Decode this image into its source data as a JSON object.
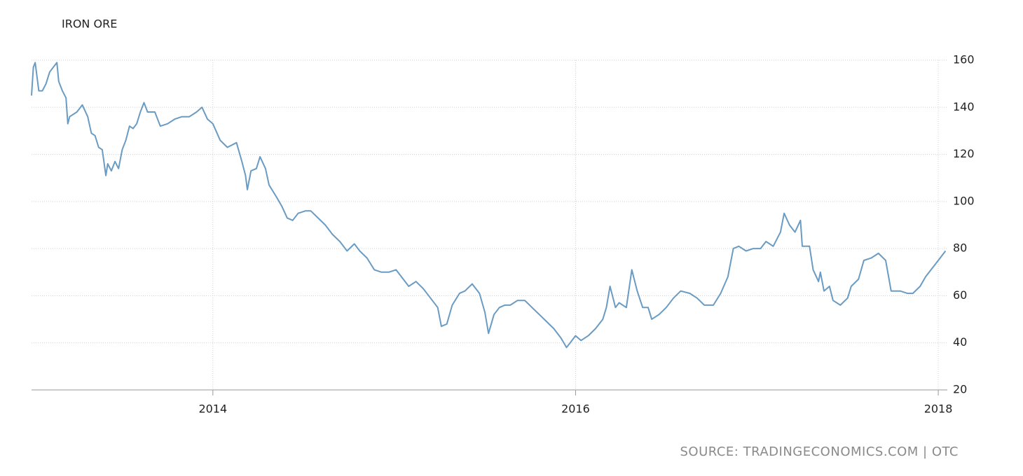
{
  "chart_data": {
    "type": "line",
    "title": "IRON ORE",
    "source": "SOURCE: TRADINGECONOMICS.COM | OTC",
    "x": [
      2013.0,
      2013.01,
      2013.02,
      2013.04,
      2013.06,
      2013.08,
      2013.1,
      2013.14,
      2013.15,
      2013.17,
      2013.19,
      2013.2,
      2013.21,
      2013.25,
      2013.28,
      2013.31,
      2013.33,
      2013.35,
      2013.37,
      2013.39,
      2013.41,
      2013.42,
      2013.44,
      2013.46,
      2013.48,
      2013.5,
      2013.52,
      2013.54,
      2013.56,
      2013.58,
      2013.6,
      2013.62,
      2013.64,
      2013.68,
      2013.71,
      2013.75,
      2013.79,
      2013.83,
      2013.87,
      2013.91,
      2013.94,
      2013.97,
      2014.0,
      2014.04,
      2014.08,
      2014.13,
      2014.16,
      2014.18,
      2014.19,
      2014.21,
      2014.24,
      2014.26,
      2014.29,
      2014.31,
      2014.35,
      2014.38,
      2014.41,
      2014.44,
      2014.47,
      2014.51,
      2014.54,
      2014.58,
      2014.62,
      2014.66,
      2014.7,
      2014.74,
      2014.78,
      2014.81,
      2014.85,
      2014.89,
      2014.93,
      2014.97,
      2015.01,
      2015.05,
      2015.08,
      2015.12,
      2015.16,
      2015.2,
      2015.24,
      2015.26,
      2015.29,
      2015.32,
      2015.36,
      2015.39,
      2015.43,
      2015.47,
      2015.5,
      2015.52,
      2015.55,
      2015.58,
      2015.61,
      2015.64,
      2015.68,
      2015.72,
      2015.76,
      2015.8,
      2015.84,
      2015.88,
      2015.92,
      2015.95,
      2015.97,
      2016.0,
      2016.03,
      2016.07,
      2016.11,
      2016.15,
      2016.17,
      2016.19,
      2016.22,
      2016.24,
      2016.28,
      2016.31,
      2016.34,
      2016.37,
      2016.4,
      2016.42,
      2016.46,
      2016.5,
      2016.54,
      2016.58,
      2016.63,
      2016.67,
      2016.71,
      2016.76,
      2016.8,
      2016.84,
      2016.87,
      2016.9,
      2016.94,
      2016.98,
      2017.02,
      2017.05,
      2017.09,
      2017.13,
      2017.15,
      2017.18,
      2017.21,
      2017.24,
      2017.25,
      2017.29,
      2017.31,
      2017.34,
      2017.35,
      2017.37,
      2017.4,
      2017.42,
      2017.46,
      2017.5,
      2017.52,
      2017.56,
      2017.59,
      2017.63,
      2017.67,
      2017.71,
      2017.74,
      2017.79,
      2017.83,
      2017.86,
      2017.9,
      2017.93,
      2017.96,
      2018.0,
      2018.04
    ],
    "series": [
      {
        "name": "Iron Ore",
        "color": "#6a9bc3",
        "values": [
          145,
          157,
          159,
          147,
          147,
          150,
          155,
          159,
          151,
          147,
          144,
          133,
          136,
          138,
          141,
          136,
          129,
          128,
          123,
          122,
          111,
          116,
          113,
          117,
          114,
          122,
          126,
          132,
          131,
          133,
          138,
          142,
          138,
          138,
          132,
          133,
          135,
          136,
          136,
          138,
          140,
          135,
          133,
          126,
          123,
          125,
          117,
          111,
          105,
          113,
          114,
          119,
          114,
          107,
          102,
          98,
          93,
          92,
          95,
          96,
          96,
          93,
          90,
          86,
          83,
          79,
          82,
          79,
          76,
          71,
          70,
          70,
          71,
          67,
          64,
          66,
          63,
          59,
          55,
          47,
          48,
          56,
          61,
          62,
          65,
          61,
          53,
          44,
          52,
          55,
          56,
          56,
          58,
          58,
          55,
          52,
          49,
          46,
          42,
          38,
          40,
          43,
          41,
          43,
          46,
          50,
          55,
          64,
          55,
          57,
          55,
          71,
          62,
          55,
          55,
          50,
          52,
          55,
          59,
          62,
          61,
          59,
          56,
          56,
          61,
          68,
          80,
          81,
          79,
          80,
          80,
          83,
          81,
          87,
          95,
          90,
          87,
          92,
          81,
          81,
          71,
          66,
          70,
          62,
          64,
          58,
          56,
          59,
          64,
          67,
          75,
          76,
          78,
          75,
          62,
          62,
          61,
          61,
          64,
          68,
          71,
          75,
          79
        ]
      }
    ],
    "xlim": [
      2013,
      2018.05
    ],
    "xticks": [
      2014,
      2016,
      2018
    ],
    "ylim": [
      20,
      160
    ],
    "yticks": [
      20,
      40,
      60,
      80,
      100,
      120,
      140,
      160
    ],
    "grid": true
  }
}
